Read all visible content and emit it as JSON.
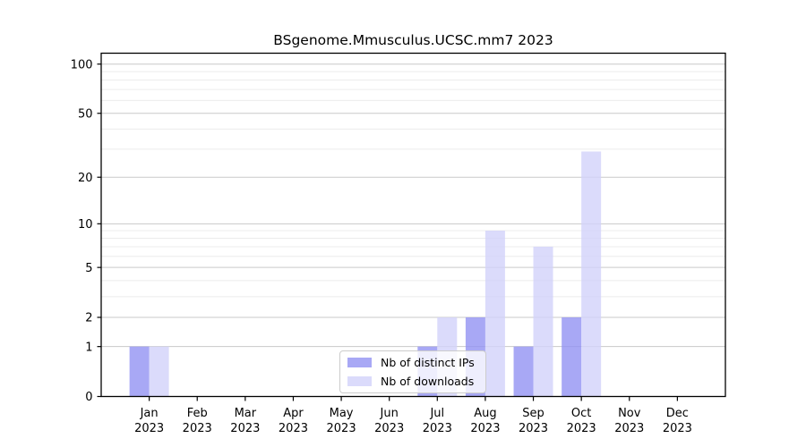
{
  "chart_data": {
    "type": "bar",
    "title": "BSgenome.Mmusculus.UCSC.mm7 2023",
    "year_label": "2023",
    "months": [
      "Jan",
      "Feb",
      "Mar",
      "Apr",
      "May",
      "Jun",
      "Jul",
      "Aug",
      "Sep",
      "Oct",
      "Nov",
      "Dec"
    ],
    "series": [
      {
        "name": "Nb of distinct IPs",
        "color": "#9292f2",
        "legend_color": "#a8a8f5",
        "values": [
          1,
          0,
          0,
          0,
          0,
          0,
          1,
          2,
          1,
          2,
          0,
          0
        ]
      },
      {
        "name": "Nb of downloads",
        "color": "#d2d2fa",
        "legend_color": "#dbdbfb",
        "values": [
          1,
          0,
          0,
          0,
          0,
          0,
          2,
          9,
          7,
          29,
          0,
          0
        ]
      }
    ],
    "xlabel": "",
    "ylabel": "",
    "y_scale": "log10(value+1)",
    "y_ticks": [
      0,
      1,
      2,
      5,
      10,
      20,
      50,
      100
    ],
    "y_minor_ticks": [
      3,
      4,
      6,
      7,
      8,
      9,
      30,
      40,
      60,
      70,
      80,
      90
    ],
    "ylim": [
      0,
      117
    ],
    "grid": true,
    "legend_position": "lower center",
    "colors": {
      "major_grid": "#c9c9c9",
      "minor_grid": "#ececec",
      "axis": "#000000",
      "text": "#000000",
      "background": "#ffffff"
    }
  }
}
